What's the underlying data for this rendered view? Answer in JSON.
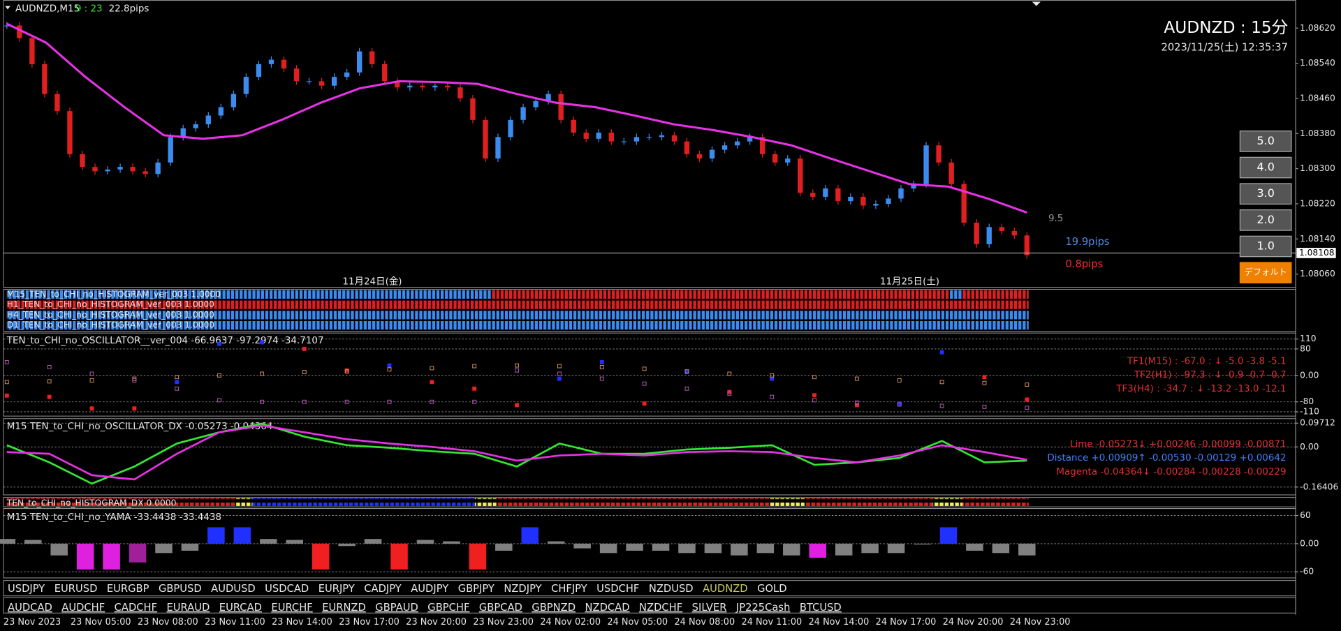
{
  "header": {
    "symbol": "AUDNZD,M15",
    "countdown": "9 : 23",
    "spread": "22.8pips",
    "big_title": "AUDNZD : 15分",
    "datetime": "2023/11/25(土) 12:35:37"
  },
  "buttons": [
    "5.0",
    "4.0",
    "3.0",
    "2.0",
    "1.0",
    "デフォルト"
  ],
  "annotations": {
    "level": "9.5",
    "range_pips": "19.9pips",
    "move_pips": "0.8pips",
    "day1": "11月24日(金)",
    "day2": "11月25日(土)"
  },
  "price_chart": {
    "type": "candlestick",
    "ylim": [
      1.08031,
      1.08684
    ],
    "yticks": [
      {
        "value": 1.0862,
        "label": "1.08620"
      },
      {
        "value": 1.0854,
        "label": "1.08540"
      },
      {
        "value": 1.0846,
        "label": "1.08460"
      },
      {
        "value": 1.0838,
        "label": "1.08380"
      },
      {
        "value": 1.083,
        "label": "1.08300"
      },
      {
        "value": 1.0822,
        "label": "1.08220"
      },
      {
        "value": 1.0814,
        "label": "1.08140"
      },
      {
        "value": 1.0806,
        "label": "1.08060"
      }
    ],
    "current_price": 1.08108,
    "up_color": "#3c8cf0",
    "down_color": "#e02020",
    "close": [
      1.08626,
      1.08597,
      1.08538,
      1.0847,
      1.08431,
      1.08333,
      1.08304,
      1.08294,
      1.08298,
      1.08304,
      1.08294,
      1.08288,
      1.08314,
      1.08372,
      1.08392,
      1.08401,
      1.08421,
      1.0844,
      1.0847,
      1.08509,
      1.08538,
      1.08548,
      1.08528,
      1.08499,
      1.08499,
      1.08489,
      1.08509,
      1.08519,
      1.08567,
      1.08538,
      1.08499,
      1.08485,
      1.08489,
      1.08485,
      1.08489,
      1.08485,
      1.0846,
      1.08411,
      1.08323,
      1.08372,
      1.08411,
      1.0844,
      1.08454,
      1.0847,
      1.08411,
      1.08382,
      1.08368,
      1.08382,
      1.08362,
      1.08362,
      1.08372,
      1.08372,
      1.08376,
      1.08362,
      1.08333,
      1.08323,
      1.08343,
      1.08353,
      1.08362,
      1.08372,
      1.08333,
      1.08314,
      1.08323,
      1.08245,
      1.08236,
      1.08255,
      1.08226,
      1.08236,
      1.08216,
      1.0822,
      1.08232,
      1.08255,
      1.08265,
      1.08353,
      1.08314,
      1.08265,
      1.08177,
      1.08128,
      1.08167,
      1.08158,
      1.08148,
      1.08103
    ],
    "ma": {
      "color": "#e632e6",
      "values": [
        1.0863,
        1.08587,
        1.08509,
        1.0844,
        1.08376,
        1.08368,
        1.08376,
        1.08411,
        1.0845,
        1.08483,
        1.08499,
        1.08497,
        1.08493,
        1.0847,
        1.0845,
        1.0844,
        1.08421,
        1.08401,
        1.08388,
        1.08372,
        1.08353,
        1.08323,
        1.08294,
        1.08265,
        1.08259,
        1.08232,
        1.082
      ]
    }
  },
  "histogram_rows": [
    "M15_TEN_to_CHI_no_HISTOGRAM_ver_003 1.0000",
    "H1_TEN_to_CHI_no_HISTOGRAM_ver_003 1.0000",
    "H4_TEN_to_CHI_no_HISTOGRAM_ver_003 1.0000",
    "D1_TEN_to_CHI_no_HISTOGRAM_ver_003 1.0000"
  ],
  "oscillator": {
    "type": "dots",
    "title": "TEN_to_CHI_no_OSCILLATOR__ver_004 -66.9637 -97.2974 -34.7107",
    "ylim": [
      -123,
      128
    ],
    "yticks": [
      110,
      80,
      {
        "value": 0,
        "label": "0.00"
      },
      -80,
      -110
    ],
    "rise_color": "#2030ff",
    "series": [
      {
        "color": "#f02020",
        "values": [
          -61,
          -65,
          -100,
          -100,
          -20,
          95,
          100,
          80,
          15,
          30,
          -20,
          -40,
          -90,
          -10,
          40,
          -85,
          10,
          -50,
          -10,
          -60,
          -90,
          -85,
          70,
          -5,
          -73
        ]
      },
      {
        "color": "#d2915a",
        "values": [
          -20,
          -18,
          -15,
          -10,
          -5,
          0,
          5,
          10,
          12,
          18,
          22,
          28,
          30,
          28,
          25,
          20,
          12,
          5,
          0,
          -5,
          -10,
          -15,
          -20,
          -23,
          -28
        ]
      },
      {
        "color": "#b45ab4",
        "values": [
          40,
          25,
          5,
          -15,
          -40,
          -75,
          -80,
          -80,
          -80,
          -80,
          -80,
          -80,
          15,
          5,
          -10,
          -25,
          -40,
          -55,
          -65,
          -75,
          -82,
          -88,
          -92,
          -95,
          -98
        ]
      }
    ],
    "readouts": [
      "TF1(M15) : -67.0 : ↓ -5.0 -3.8 -5.1",
      "TF2(H1) : -97.3 : ↓ -0.9 -0.7 -0.7",
      "TF3(H4) : -34.7 : ↓ -13.2 -13.0 -12.1"
    ]
  },
  "dx": {
    "type": "line",
    "title": "M15 TEN_to_CHI_no_OSCILLATOR_DX -0.05273 -0.04364",
    "ylim": [
      -0.196,
      0.1155
    ],
    "yticks": [
      0.09712,
      {
        "value": 0,
        "label": "0.00"
      },
      -0.16406
    ],
    "series": [
      {
        "color": "#32e632",
        "values": [
          0.007,
          -0.063,
          -0.15,
          -0.08,
          0.014,
          0.06,
          0.095,
          0.042,
          0.007,
          -0.0035,
          -0.0175,
          -0.028,
          -0.08,
          0.014,
          -0.028,
          -0.028,
          -0.0105,
          -0.0035,
          0.007,
          -0.073,
          -0.063,
          -0.045,
          0.0245,
          -0.063,
          -0.056
        ]
      },
      {
        "color": "#e632e6",
        "values": [
          -0.021,
          -0.028,
          -0.1155,
          -0.133,
          -0.028,
          0.06,
          0.0875,
          0.06,
          0.0315,
          0.014,
          0,
          -0.0175,
          -0.056,
          -0.035,
          -0.028,
          -0.035,
          -0.021,
          -0.0175,
          -0.021,
          -0.045,
          -0.063,
          -0.035,
          0.007,
          -0.021,
          -0.0525
        ]
      }
    ],
    "readouts": [
      {
        "text": "Lime -0.05273↓ +0.00246 -0.00099 -0.00871",
        "color": "#e03030"
      },
      {
        "text": "Distance +0.00909↑ -0.00530 -0.00129 +0.00642",
        "color": "#4080ff"
      },
      {
        "text": "Magenta -0.04364↓ -0.00284 -0.00228 -0.00229",
        "color": "#e03030"
      }
    ]
  },
  "histogram_dx": "TEN_to_CHI_no_HISTOGRAM_DX 0.0000",
  "yama": {
    "type": "bar",
    "title": "M15  TEN_to_CHI_no_YAMA  -33.4438 -33.4438",
    "ylim": [
      -73,
      73
    ],
    "yticks": [
      60,
      {
        "value": 0,
        "label": "0.00"
      },
      -60
    ],
    "values": [
      10,
      8,
      -25,
      -55,
      -55,
      -40,
      -20,
      -15,
      35,
      35,
      10,
      8,
      -55,
      -5,
      10,
      -55,
      8,
      5,
      -55,
      -15,
      35,
      5,
      -10,
      -20,
      -15,
      -15,
      -20,
      -20,
      -25,
      -20,
      -25,
      -30,
      -25,
      -20,
      -20,
      0,
      35,
      -15,
      -20,
      -25
    ],
    "colors": [
      "#808080",
      "#808080",
      "#808080",
      "#e020e0",
      "#e020e0",
      "#a0209a",
      "#808080",
      "#808080",
      "#2030ff",
      "#2030ff",
      "#808080",
      "#808080",
      "#f02020",
      "#808080",
      "#808080",
      "#f02020",
      "#808080",
      "#808080",
      "#f02020",
      "#808080",
      "#2030ff",
      "#808080",
      "#808080",
      "#808080",
      "#808080",
      "#808080",
      "#808080",
      "#808080",
      "#808080",
      "#808080",
      "#808080",
      "#e020e0",
      "#808080",
      "#808080",
      "#808080",
      "#808080",
      "#2030ff",
      "#808080",
      "#808080",
      "#808080"
    ]
  },
  "symbols_row1": [
    "USDJPY",
    "EURUSD",
    "EURGBP",
    "GBPUSD",
    "AUDUSD",
    "USDCAD",
    "EURJPY",
    "CADJPY",
    "AUDJPY",
    "GBPJPY",
    "NZDJPY",
    "CHFJPY",
    "USDCHF",
    "NZDUSD",
    "AUDNZD",
    "GOLD"
  ],
  "active_symbol_color": "#c8c864",
  "symbols_row2": [
    "AUDCAD",
    "AUDCHF",
    "CADCHF",
    "EURAUD",
    "EURCAD",
    "EURCHF",
    "EURNZD",
    "GBPAUD",
    "GBPCHF",
    "GBPCAD",
    "GBPNZD",
    "NZDCAD",
    "NZDCHF",
    "SILVER",
    "JP225Cash",
    "BTCUSD"
  ],
  "time_labels": [
    "23 Nov 2023",
    "23 Nov 05:00",
    "23 Nov 08:00",
    "23 Nov 11:00",
    "23 Nov 14:00",
    "23 Nov 17:00",
    "23 Nov 20:00",
    "23 Nov 23:00",
    "24 Nov 02:00",
    "24 Nov 05:00",
    "24 Nov 08:00",
    "24 Nov 11:00",
    "24 Nov 14:00",
    "24 Nov 17:00",
    "24 Nov 20:00",
    "24 Nov 23:00"
  ]
}
